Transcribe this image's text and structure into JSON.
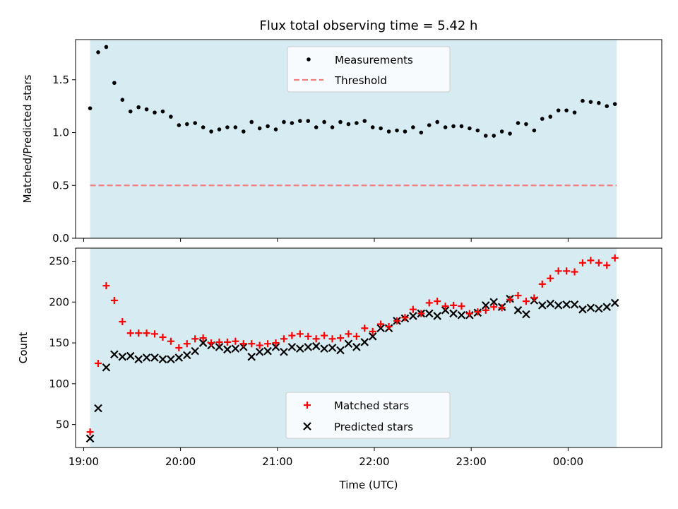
{
  "chart_data": [
    {
      "type": "scatter",
      "title": "Flux total observing time = 5.42 h",
      "ylabel": "Matched/Predicted stars",
      "xlim": [
        "18:55",
        "00:58"
      ],
      "ylim": [
        0,
        1.88
      ],
      "x_ticks": [
        "19:00",
        "20:00",
        "21:00",
        "22:00",
        "23:00",
        "00:00"
      ],
      "y_ticks": [
        "0.0",
        "0.5",
        "1.0",
        "1.5"
      ],
      "shaded_span": [
        "19:04",
        "00:30"
      ],
      "legend": {
        "placement": "top-center",
        "entries": [
          "Measurements",
          "Threshold"
        ]
      },
      "series": [
        {
          "name": "Measurements",
          "marker": "dot",
          "color": "#000000",
          "x": [
            "19:04",
            "19:09",
            "19:14",
            "19:19",
            "19:24",
            "19:29",
            "19:34",
            "19:39",
            "19:44",
            "19:49",
            "19:54",
            "19:59",
            "20:04",
            "20:09",
            "20:14",
            "20:19",
            "20:24",
            "20:29",
            "20:34",
            "20:39",
            "20:44",
            "20:49",
            "20:54",
            "20:59",
            "21:04",
            "21:09",
            "21:14",
            "21:19",
            "21:24",
            "21:29",
            "21:34",
            "21:39",
            "21:44",
            "21:49",
            "21:54",
            "21:59",
            "22:04",
            "22:09",
            "22:14",
            "22:19",
            "22:24",
            "22:29",
            "22:34",
            "22:39",
            "22:44",
            "22:49",
            "22:54",
            "22:59",
            "23:04",
            "23:09",
            "23:14",
            "23:19",
            "23:24",
            "23:29",
            "23:34",
            "23:39",
            "23:44",
            "23:49",
            "23:54",
            "23:59",
            "00:04",
            "00:09",
            "00:14",
            "00:19",
            "00:24",
            "00:29"
          ],
          "y": [
            1.23,
            1.76,
            1.81,
            1.47,
            1.31,
            1.2,
            1.24,
            1.22,
            1.19,
            1.2,
            1.15,
            1.07,
            1.08,
            1.09,
            1.05,
            1.01,
            1.03,
            1.05,
            1.05,
            1.01,
            1.1,
            1.04,
            1.06,
            1.03,
            1.1,
            1.09,
            1.11,
            1.11,
            1.05,
            1.1,
            1.05,
            1.1,
            1.08,
            1.09,
            1.11,
            1.05,
            1.04,
            1.01,
            1.02,
            1.01,
            1.05,
            1.0,
            1.07,
            1.1,
            1.05,
            1.06,
            1.06,
            1.04,
            1.02,
            0.97,
            0.97,
            1.01,
            0.99,
            1.09,
            1.08,
            1.02,
            1.13,
            1.15,
            1.21,
            1.21,
            1.19,
            1.3,
            1.29,
            1.28,
            1.25,
            1.27
          ]
        },
        {
          "name": "Threshold",
          "marker": "dashed-line",
          "color": "#f08080",
          "x": [
            "19:04",
            "00:30"
          ],
          "y": [
            0.5,
            0.5
          ]
        }
      ]
    },
    {
      "type": "scatter",
      "xlabel": "Time (UTC)",
      "ylabel": "Count",
      "xlim": [
        "18:55",
        "00:58"
      ],
      "ylim": [
        22,
        266
      ],
      "x_ticks": [
        "19:00",
        "20:00",
        "21:00",
        "22:00",
        "23:00",
        "00:00"
      ],
      "y_ticks": [
        "50",
        "100",
        "150",
        "200",
        "250"
      ],
      "shaded_span": [
        "19:04",
        "00:30"
      ],
      "legend": {
        "placement": "bottom-center",
        "entries": [
          "Matched stars",
          "Predicted stars"
        ]
      },
      "series": [
        {
          "name": "Matched stars",
          "marker": "plus",
          "color": "#ff0000",
          "x": [
            "19:04",
            "19:09",
            "19:14",
            "19:19",
            "19:24",
            "19:29",
            "19:34",
            "19:39",
            "19:44",
            "19:49",
            "19:54",
            "19:59",
            "20:04",
            "20:09",
            "20:14",
            "20:19",
            "20:24",
            "20:29",
            "20:34",
            "20:39",
            "20:44",
            "20:49",
            "20:54",
            "20:59",
            "21:04",
            "21:09",
            "21:14",
            "21:19",
            "21:24",
            "21:29",
            "21:34",
            "21:39",
            "21:44",
            "21:49",
            "21:54",
            "21:59",
            "22:04",
            "22:09",
            "22:14",
            "22:19",
            "22:24",
            "22:29",
            "22:34",
            "22:39",
            "22:44",
            "22:49",
            "22:54",
            "22:59",
            "23:04",
            "23:09",
            "23:14",
            "23:19",
            "23:24",
            "23:29",
            "23:34",
            "23:39",
            "23:44",
            "23:49",
            "23:54",
            "23:59",
            "00:04",
            "00:09",
            "00:14",
            "00:19",
            "00:24",
            "00:29"
          ],
          "y": [
            41,
            125,
            220,
            202,
            176,
            162,
            162,
            162,
            161,
            157,
            152,
            144,
            149,
            155,
            156,
            150,
            151,
            151,
            152,
            149,
            149,
            147,
            149,
            150,
            155,
            159,
            161,
            158,
            155,
            159,
            155,
            156,
            161,
            158,
            168,
            164,
            173,
            170,
            177,
            181,
            191,
            186,
            199,
            201,
            195,
            196,
            195,
            186,
            188,
            190,
            194,
            193,
            203,
            208,
            201,
            205,
            222,
            229,
            238,
            238,
            237,
            248,
            251,
            248,
            245,
            254
          ]
        },
        {
          "name": "Predicted stars",
          "marker": "x",
          "color": "#000000",
          "x": [
            "19:04",
            "19:09",
            "19:14",
            "19:19",
            "19:24",
            "19:29",
            "19:34",
            "19:39",
            "19:44",
            "19:49",
            "19:54",
            "19:59",
            "20:04",
            "20:09",
            "20:14",
            "20:19",
            "20:24",
            "20:29",
            "20:34",
            "20:39",
            "20:44",
            "20:49",
            "20:54",
            "20:59",
            "21:04",
            "21:09",
            "21:14",
            "21:19",
            "21:24",
            "21:29",
            "21:34",
            "21:39",
            "21:44",
            "21:49",
            "21:54",
            "21:59",
            "22:04",
            "22:09",
            "22:14",
            "22:19",
            "22:24",
            "22:29",
            "22:34",
            "22:39",
            "22:44",
            "22:49",
            "22:54",
            "22:59",
            "23:04",
            "23:09",
            "23:14",
            "23:19",
            "23:24",
            "23:29",
            "23:34",
            "23:39",
            "23:44",
            "23:49",
            "23:54",
            "23:59",
            "00:04",
            "00:09",
            "00:14",
            "00:19",
            "00:24",
            "00:29"
          ],
          "y": [
            33,
            70,
            120,
            136,
            133,
            134,
            130,
            132,
            132,
            130,
            130,
            132,
            135,
            140,
            150,
            147,
            145,
            142,
            143,
            145,
            133,
            139,
            140,
            145,
            139,
            145,
            143,
            145,
            146,
            143,
            144,
            141,
            149,
            145,
            151,
            158,
            168,
            168,
            177,
            180,
            183,
            186,
            186,
            183,
            190,
            186,
            184,
            184,
            187,
            196,
            200,
            194,
            204,
            190,
            185,
            202,
            196,
            198,
            196,
            197,
            197,
            191,
            193,
            192,
            194,
            199
          ]
        }
      ]
    }
  ]
}
